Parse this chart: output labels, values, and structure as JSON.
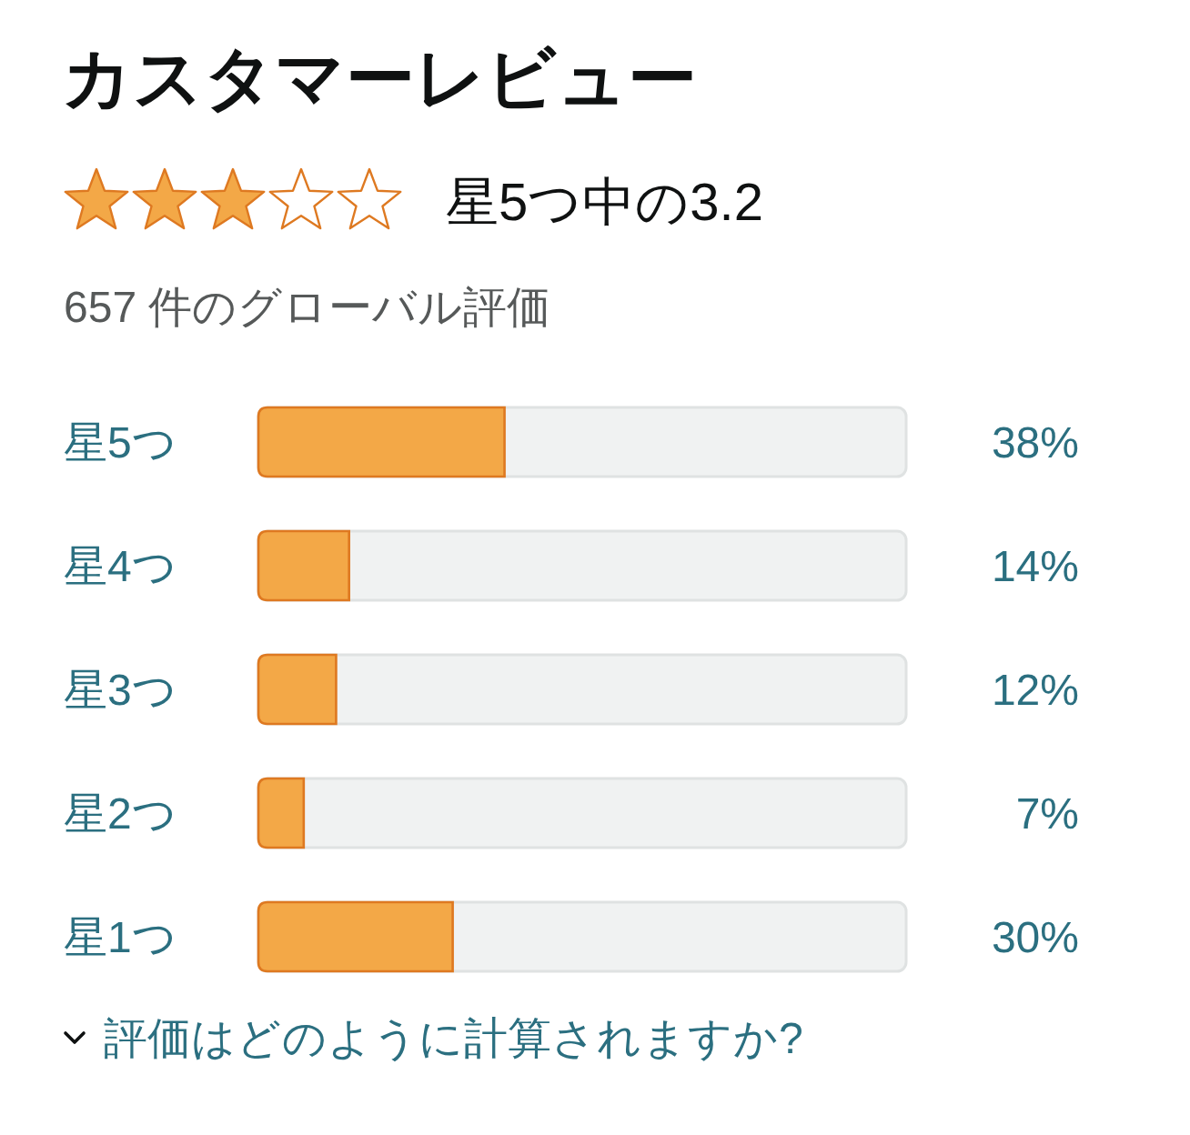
{
  "chart_data": {
    "type": "bar",
    "orientation": "horizontal",
    "title": "カスタマーレビュー",
    "subtitle": "星5つ中の3.2",
    "annotations": [
      "657 件のグローバル評価",
      "評価はどのように計算されますか?"
    ],
    "categories": [
      "星5つ",
      "星4つ",
      "星3つ",
      "星2つ",
      "星1つ"
    ],
    "values": [
      38,
      14,
      12,
      7,
      30
    ],
    "value_labels": [
      "38%",
      "14%",
      "12%",
      "7%",
      "30%"
    ],
    "color": "#f3a847",
    "xlim": [
      0,
      100
    ],
    "tick_labels": "y"
  }
}
